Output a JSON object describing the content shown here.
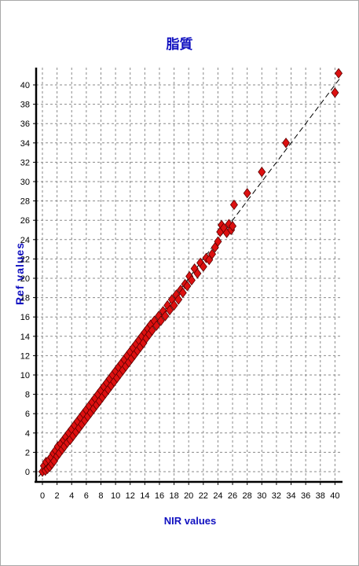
{
  "chart_data": {
    "type": "scatter",
    "title": "脂質",
    "xlabel": "NIR values",
    "ylabel": "Ref values",
    "xlim": [
      -0.5,
      41
    ],
    "ylim": [
      -0.5,
      42
    ],
    "xticks": [
      0,
      2,
      4,
      6,
      8,
      10,
      12,
      14,
      16,
      18,
      20,
      22,
      24,
      26,
      28,
      30,
      32,
      34,
      36,
      38,
      40
    ],
    "yticks": [
      0,
      2,
      4,
      6,
      8,
      10,
      12,
      14,
      16,
      18,
      20,
      22,
      24,
      26,
      28,
      30,
      32,
      34,
      36,
      38,
      40
    ],
    "grid": true,
    "reference_line": "y = x",
    "marker": "diamond",
    "marker_color": "#dd1010",
    "points": [
      [
        0.0,
        0.0
      ],
      [
        0.2,
        0.6
      ],
      [
        0.4,
        0.1
      ],
      [
        0.5,
        1.0
      ],
      [
        0.7,
        0.3
      ],
      [
        0.9,
        1.2
      ],
      [
        1.0,
        0.5
      ],
      [
        1.2,
        1.5
      ],
      [
        1.3,
        0.8
      ],
      [
        1.5,
        1.9
      ],
      [
        1.6,
        1.1
      ],
      [
        1.8,
        2.2
      ],
      [
        2.0,
        1.6
      ],
      [
        2.1,
        2.6
      ],
      [
        2.3,
        1.9
      ],
      [
        2.5,
        2.9
      ],
      [
        2.7,
        2.3
      ],
      [
        2.9,
        3.3
      ],
      [
        3.0,
        2.6
      ],
      [
        3.2,
        3.6
      ],
      [
        3.4,
        3.0
      ],
      [
        3.6,
        4.0
      ],
      [
        3.8,
        3.3
      ],
      [
        4.0,
        4.4
      ],
      [
        4.2,
        3.7
      ],
      [
        4.4,
        4.8
      ],
      [
        4.6,
        4.1
      ],
      [
        4.8,
        5.2
      ],
      [
        5.0,
        4.5
      ],
      [
        5.2,
        5.6
      ],
      [
        5.4,
        4.9
      ],
      [
        5.6,
        6.0
      ],
      [
        5.8,
        5.3
      ],
      [
        6.0,
        6.4
      ],
      [
        6.2,
        5.7
      ],
      [
        6.4,
        6.8
      ],
      [
        6.6,
        6.1
      ],
      [
        6.8,
        7.2
      ],
      [
        7.0,
        6.5
      ],
      [
        7.2,
        7.6
      ],
      [
        7.4,
        6.9
      ],
      [
        7.6,
        8.0
      ],
      [
        7.8,
        7.3
      ],
      [
        8.0,
        8.4
      ],
      [
        8.2,
        7.7
      ],
      [
        8.4,
        8.8
      ],
      [
        8.6,
        8.1
      ],
      [
        8.8,
        9.2
      ],
      [
        9.0,
        8.5
      ],
      [
        9.2,
        9.6
      ],
      [
        9.4,
        8.9
      ],
      [
        9.6,
        10.0
      ],
      [
        9.8,
        9.3
      ],
      [
        10.0,
        10.4
      ],
      [
        10.2,
        9.7
      ],
      [
        10.4,
        10.8
      ],
      [
        10.6,
        10.1
      ],
      [
        10.8,
        11.2
      ],
      [
        11.0,
        10.5
      ],
      [
        11.2,
        11.6
      ],
      [
        11.4,
        10.9
      ],
      [
        11.6,
        12.0
      ],
      [
        11.8,
        11.3
      ],
      [
        12.0,
        12.4
      ],
      [
        12.2,
        11.7
      ],
      [
        12.4,
        12.8
      ],
      [
        12.6,
        12.1
      ],
      [
        12.8,
        13.2
      ],
      [
        13.0,
        12.5
      ],
      [
        13.2,
        13.6
      ],
      [
        13.4,
        12.9
      ],
      [
        13.6,
        14.0
      ],
      [
        13.8,
        13.3
      ],
      [
        14.0,
        14.4
      ],
      [
        14.2,
        13.8
      ],
      [
        14.4,
        14.8
      ],
      [
        14.6,
        14.2
      ],
      [
        14.8,
        15.2
      ],
      [
        15.0,
        14.6
      ],
      [
        15.3,
        15.6
      ],
      [
        15.6,
        15.1
      ],
      [
        15.9,
        16.1
      ],
      [
        16.2,
        15.6
      ],
      [
        16.5,
        16.6
      ],
      [
        16.8,
        16.1
      ],
      [
        17.1,
        17.2
      ],
      [
        17.4,
        16.7
      ],
      [
        17.7,
        17.8
      ],
      [
        18.0,
        17.2
      ],
      [
        18.3,
        18.3
      ],
      [
        18.6,
        17.8
      ],
      [
        18.9,
        18.8
      ],
      [
        19.2,
        18.5
      ],
      [
        19.5,
        19.4
      ],
      [
        19.8,
        19.2
      ],
      [
        20.1,
        20.2
      ],
      [
        20.4,
        19.8
      ],
      [
        20.8,
        21.0
      ],
      [
        21.2,
        20.5
      ],
      [
        21.6,
        21.6
      ],
      [
        22.0,
        21.2
      ],
      [
        22.4,
        22.1
      ],
      [
        22.8,
        21.9
      ],
      [
        23.2,
        22.5
      ],
      [
        23.6,
        23.2
      ],
      [
        24.0,
        23.8
      ],
      [
        24.3,
        24.8
      ],
      [
        24.5,
        25.5
      ],
      [
        24.8,
        25.2
      ],
      [
        25.2,
        24.7
      ],
      [
        25.5,
        25.6
      ],
      [
        25.8,
        25.0
      ],
      [
        26.0,
        25.4
      ],
      [
        26.2,
        27.6
      ],
      [
        28.0,
        28.8
      ],
      [
        30.0,
        31.0
      ],
      [
        33.3,
        34.0
      ],
      [
        40.0,
        39.2
      ],
      [
        40.5,
        41.2
      ]
    ]
  }
}
